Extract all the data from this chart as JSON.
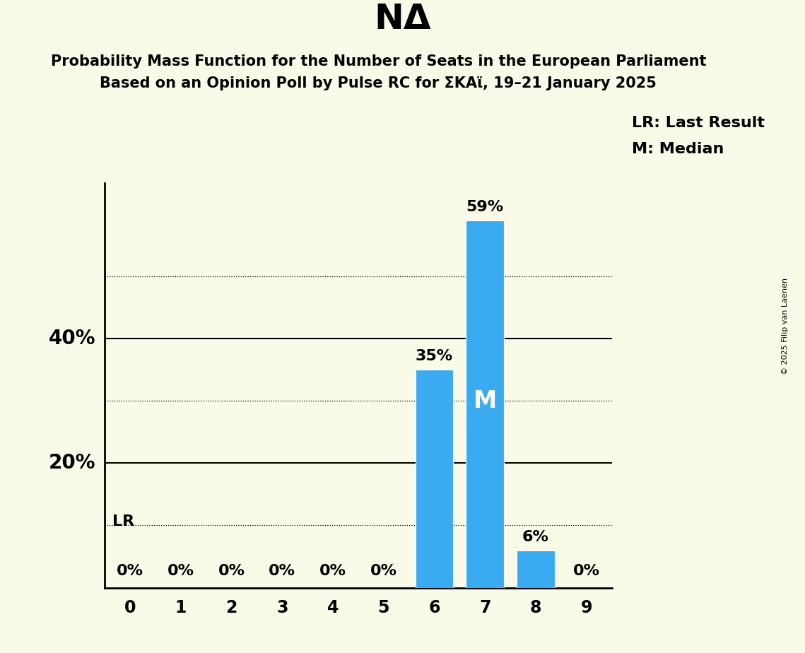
{
  "title": "NΔ",
  "subtitle1": "Probability Mass Function for the Number of Seats in the European Parliament",
  "subtitle2": "Based on an Opinion Poll by Pulse RC for ΣKAϊ, 19–21 January 2025",
  "copyright": "© 2025 Filip van Laenen",
  "categories": [
    0,
    1,
    2,
    3,
    4,
    5,
    6,
    7,
    8,
    9
  ],
  "values": [
    0,
    0,
    0,
    0,
    0,
    0,
    35,
    59,
    6,
    0
  ],
  "bar_color": "#3aabf0",
  "median_bar": 7,
  "lr_bar": 0,
  "background_color": "#fafae8",
  "median_label": "M",
  "lr_label": "LR",
  "legend_lr": "LR: Last Result",
  "legend_m": "M: Median",
  "dotted_lines": [
    10,
    30,
    50
  ],
  "solid_lines": [
    20,
    40
  ],
  "ylabel_positions": [
    [
      20,
      "20%"
    ],
    [
      40,
      "40%"
    ]
  ],
  "xlim": [
    -0.5,
    9.5
  ],
  "ylim": [
    0,
    65
  ],
  "bar_width": 0.75,
  "title_fontsize": 36,
  "subtitle_fontsize": 15,
  "label_fontsize": 16,
  "tick_fontsize": 17,
  "legend_fontsize": 16,
  "ylabel_fontsize": 20,
  "copyright_fontsize": 8
}
